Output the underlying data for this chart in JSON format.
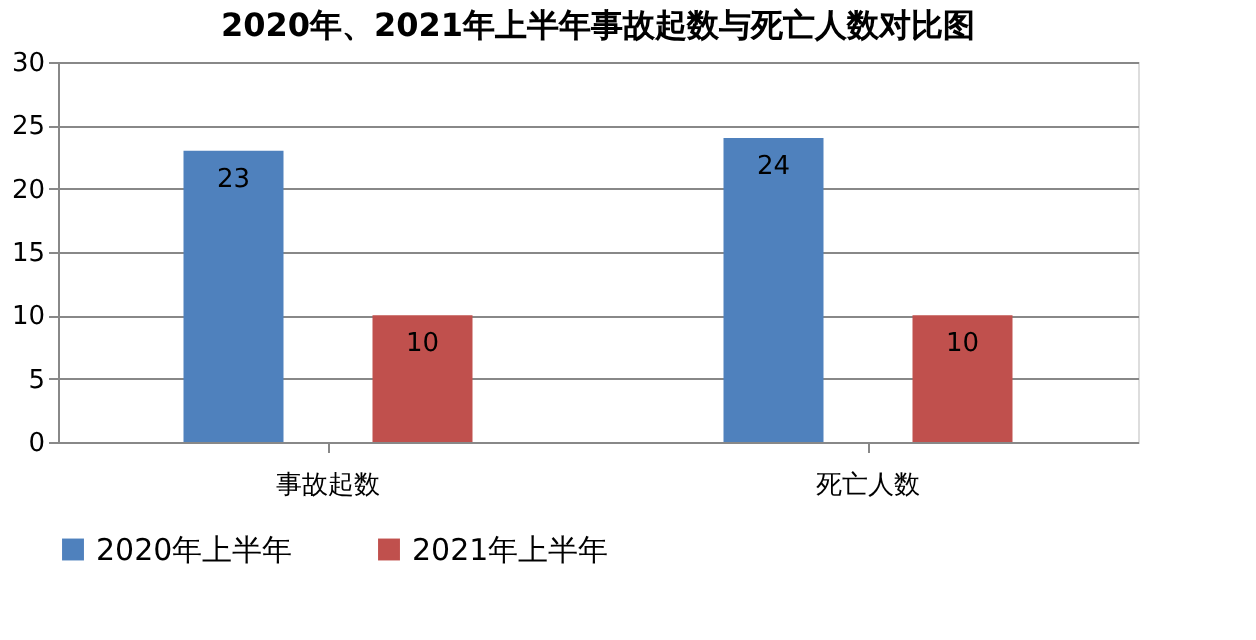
{
  "chart_data": {
    "type": "bar",
    "title": "2020年、2021年上半年事故起数与死亡人数对比图",
    "categories": [
      "事故起数",
      "死亡人数"
    ],
    "series": [
      {
        "name": "2020年上半年",
        "color": "#4f81bd",
        "values": [
          23,
          24
        ]
      },
      {
        "name": "2021年上半年",
        "color": "#c0504d",
        "values": [
          10,
          10
        ]
      }
    ],
    "ylim": [
      0,
      30
    ],
    "yticks": [
      0,
      5,
      10,
      15,
      20,
      25,
      30
    ],
    "grid": "y",
    "legend": "bottom",
    "data_labels": true
  }
}
